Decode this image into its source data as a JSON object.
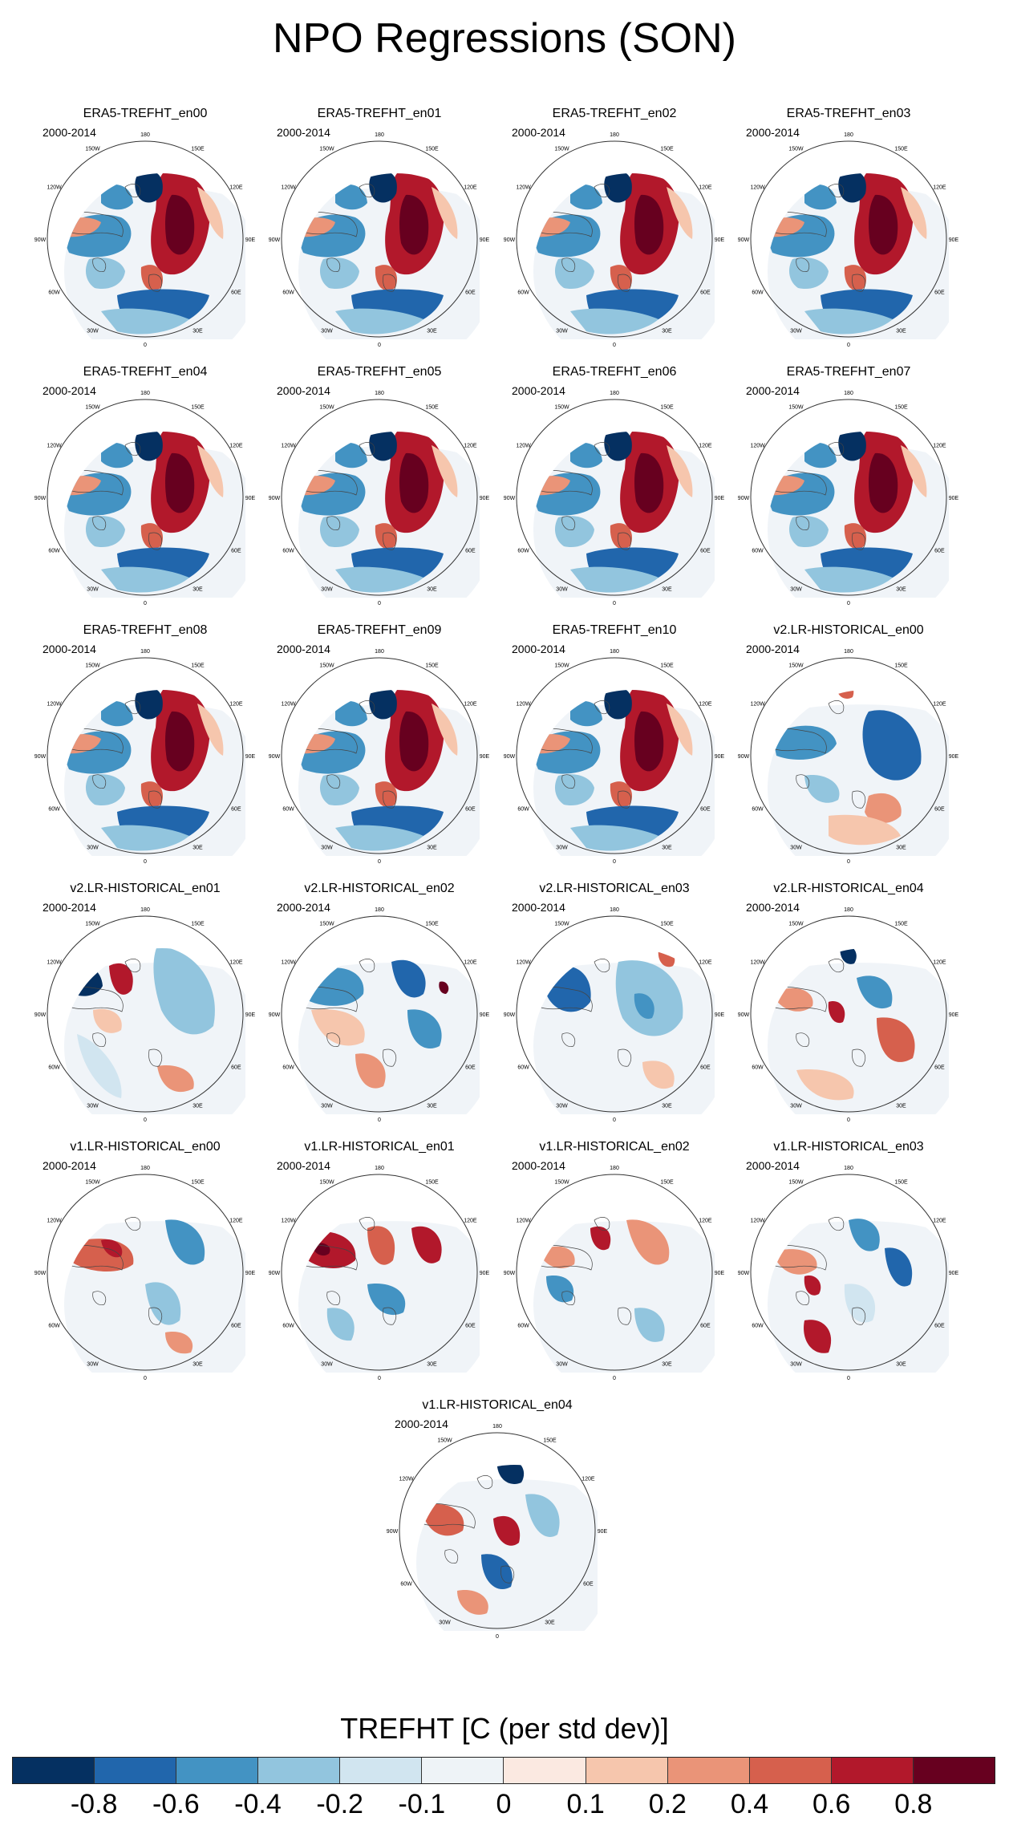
{
  "title": "NPO Regressions (SON)",
  "colorbar": {
    "label": "TREFHT [C (per std dev)]",
    "colors": [
      "#053061",
      "#2166ac",
      "#4393c3",
      "#92c5de",
      "#d1e5f0",
      "#eef3f7",
      "#fbe9e1",
      "#f6c6ad",
      "#ea9478",
      "#d6604d",
      "#b2182b",
      "#67001f"
    ],
    "ticks": [
      "-0.8",
      "-0.6",
      "-0.4",
      "-0.2",
      "-0.1",
      "0",
      "0.1",
      "0.2",
      "0.4",
      "0.6",
      "0.8"
    ]
  },
  "lon_labels": [
    "180",
    "150E",
    "120E",
    "90E",
    "60E",
    "30E",
    "0",
    "30W",
    "60W",
    "90W",
    "120W",
    "150W"
  ],
  "panels": [
    {
      "title": "ERA5-TREFHT_en00",
      "years": "2000-2014",
      "pattern": "era5"
    },
    {
      "title": "ERA5-TREFHT_en01",
      "years": "2000-2014",
      "pattern": "era5"
    },
    {
      "title": "ERA5-TREFHT_en02",
      "years": "2000-2014",
      "pattern": "era5"
    },
    {
      "title": "ERA5-TREFHT_en03",
      "years": "2000-2014",
      "pattern": "era5"
    },
    {
      "title": "ERA5-TREFHT_en04",
      "years": "2000-2014",
      "pattern": "era5"
    },
    {
      "title": "ERA5-TREFHT_en05",
      "years": "2000-2014",
      "pattern": "era5"
    },
    {
      "title": "ERA5-TREFHT_en06",
      "years": "2000-2014",
      "pattern": "era5"
    },
    {
      "title": "ERA5-TREFHT_en07",
      "years": "2000-2014",
      "pattern": "era5"
    },
    {
      "title": "ERA5-TREFHT_en08",
      "years": "2000-2014",
      "pattern": "era5"
    },
    {
      "title": "ERA5-TREFHT_en09",
      "years": "2000-2014",
      "pattern": "era5"
    },
    {
      "title": "ERA5-TREFHT_en10",
      "years": "2000-2014",
      "pattern": "era5"
    },
    {
      "title": "v2.LR-HISTORICAL_en00",
      "years": "2000-2014",
      "pattern": "v2a"
    },
    {
      "title": "v2.LR-HISTORICAL_en01",
      "years": "2000-2014",
      "pattern": "v2b"
    },
    {
      "title": "v2.LR-HISTORICAL_en02",
      "years": "2000-2014",
      "pattern": "v2c"
    },
    {
      "title": "v2.LR-HISTORICAL_en03",
      "years": "2000-2014",
      "pattern": "v2d"
    },
    {
      "title": "v2.LR-HISTORICAL_en04",
      "years": "2000-2014",
      "pattern": "v2e"
    },
    {
      "title": "v1.LR-HISTORICAL_en00",
      "years": "2000-2014",
      "pattern": "v1a"
    },
    {
      "title": "v1.LR-HISTORICAL_en01",
      "years": "2000-2014",
      "pattern": "v1b"
    },
    {
      "title": "v1.LR-HISTORICAL_en02",
      "years": "2000-2014",
      "pattern": "v1c"
    },
    {
      "title": "v1.LR-HISTORICAL_en03",
      "years": "2000-2014",
      "pattern": "v1d"
    },
    {
      "title": "v1.LR-HISTORICAL_en04",
      "years": "2000-2014",
      "pattern": "v1e"
    }
  ]
}
